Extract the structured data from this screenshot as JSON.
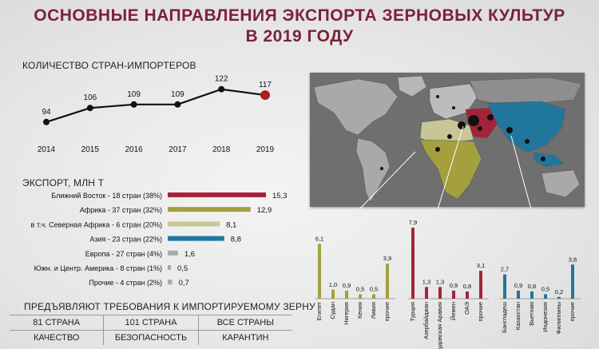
{
  "title_line1": "ОСНОВНЫЕ НАПРАВЛЕНИЯ ЭКСПОРТА ЗЕРНОВЫХ КУЛЬТУР",
  "title_line2": "В 2019 ГОДУ",
  "colors": {
    "title": "#7b2238",
    "middle_east": "#a3243a",
    "africa": "#a3a03d",
    "north_africa": "#c8c694",
    "asia": "#21779b",
    "other": "#a9a9a9"
  },
  "requirements": {
    "heading": "ПРЕДЪЯВЛЯЮТ ТРЕБОВАНИЯ  К ИМПОРТИРУЕМОМУ ЗЕРНУ",
    "columns": [
      {
        "value": "81 СТРАНА",
        "label": "КАЧЕСТВО"
      },
      {
        "value": "101 СТРАНА",
        "label": "БЕЗОПАСНОСТЬ"
      },
      {
        "value": "ВСЕ СТРАНЫ",
        "label": "КАРАНТИН"
      }
    ]
  },
  "chart_data": [
    {
      "type": "line",
      "title": "КОЛИЧЕСТВО СТРАН-ИМПОРТЕРОВ",
      "x": [
        "2014",
        "2015",
        "2016",
        "2017",
        "2018",
        "2019"
      ],
      "values": [
        94,
        106,
        109,
        109,
        122,
        117
      ],
      "ylim": [
        85,
        130
      ]
    },
    {
      "type": "bar",
      "orientation": "horizontal",
      "title": "ЭКСПОРТ, МЛН Т",
      "categories": [
        "Ближний Восток - 18 стран (38%)",
        "Африка - 37 стран (32%)",
        "в т.ч. Северная Африка - 6 стран (20%)",
        "Азия - 23 стран (22%)",
        "Европа - 27 стран (4%)",
        "Южн. и Центр. Америка - 8 стран (1%)",
        "Прочие - 4 стран (2%)"
      ],
      "values": [
        15.3,
        12.9,
        8.1,
        8.8,
        1.6,
        0.5,
        0.7
      ],
      "value_labels": [
        "15,3",
        "12,9",
        "8,1",
        "8,8",
        "1,6",
        "0,5",
        "0,7"
      ],
      "colors": [
        "#a3243a",
        "#a3a03d",
        "#c8c694",
        "#21779b",
        "#a9a9a9",
        "#a9a9a9",
        "#a9a9a9"
      ],
      "xlim": [
        0,
        15.3
      ]
    },
    {
      "type": "bar",
      "region": "Африка",
      "color": "#a3a03d",
      "categories": [
        "Египет",
        "Судан",
        "Нигерия",
        "Кения",
        "Ливия",
        "прочие"
      ],
      "values": [
        6.1,
        1.0,
        0.9,
        0.5,
        0.5,
        3.9
      ],
      "value_labels": [
        "6,1",
        "1,0",
        "0,9",
        "0,5",
        "0,5",
        "3,9"
      ],
      "ylim": [
        0,
        8
      ]
    },
    {
      "type": "bar",
      "region": "Ближний Восток",
      "color": "#a3243a",
      "categories": [
        "Турция",
        "Азербайджан",
        "Саудовская Аравия",
        "Йемен",
        "ОАЭ",
        "прочие"
      ],
      "values": [
        7.9,
        1.3,
        1.3,
        0.9,
        0.8,
        3.1
      ],
      "value_labels": [
        "7,9",
        "1,3",
        "1,3",
        "0,9",
        "0,8",
        "3,1"
      ],
      "ylim": [
        0,
        8
      ]
    },
    {
      "type": "bar",
      "region": "Азия",
      "color": "#21779b",
      "categories": [
        "Бангладеш",
        "Казахстан",
        "Вьетнам",
        "Индонезия",
        "Филиппины",
        "прочие"
      ],
      "values": [
        2.7,
        0.9,
        0.8,
        0.5,
        0.2,
        3.8
      ],
      "value_labels": [
        "2,7",
        "0,9",
        "0,8",
        "0,5",
        "0,2",
        "3,8"
      ],
      "ylim": [
        0,
        8
      ]
    }
  ]
}
